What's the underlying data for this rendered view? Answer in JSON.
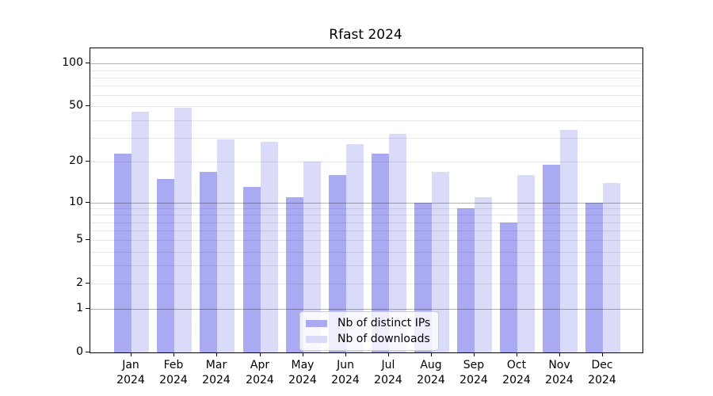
{
  "chart_data": {
    "type": "bar",
    "title": "Rfast 2024",
    "categories": [
      "Jan",
      "Feb",
      "Mar",
      "Apr",
      "May",
      "Jun",
      "Jul",
      "Aug",
      "Sep",
      "Oct",
      "Nov",
      "Dec"
    ],
    "xtick_year": "2024",
    "series": [
      {
        "name": "Nb of distinct IPs",
        "color": "#aaaaf3",
        "values": [
          23,
          15,
          17,
          13,
          11,
          16,
          23,
          10,
          9,
          7,
          19,
          10
        ]
      },
      {
        "name": "Nb of downloads",
        "color": "#dadaf9",
        "values": [
          46,
          49,
          29,
          28,
          20,
          27,
          32,
          17,
          11,
          16,
          34,
          14
        ]
      }
    ],
    "yscale": "log10(x+1)",
    "ylim": [
      0,
      128
    ],
    "ytick_values": [
      0,
      1,
      2,
      5,
      10,
      20,
      50,
      100
    ],
    "ytick_labels": [
      "0",
      "1",
      "2",
      "5",
      "10",
      "20",
      "50",
      "100"
    ],
    "grid_values": [
      1,
      2,
      3,
      4,
      5,
      6,
      7,
      8,
      9,
      10,
      20,
      30,
      40,
      50,
      60,
      70,
      80,
      90,
      100
    ],
    "grid_major_values": [
      1,
      10,
      100
    ],
    "grid": true,
    "legend_position": "bottom-center",
    "colors": {
      "spine": "#000000",
      "grid_minor": "#e8e8e8",
      "grid_major": "#b3b3b3",
      "background": "#ffffff",
      "text": "#000000"
    }
  }
}
